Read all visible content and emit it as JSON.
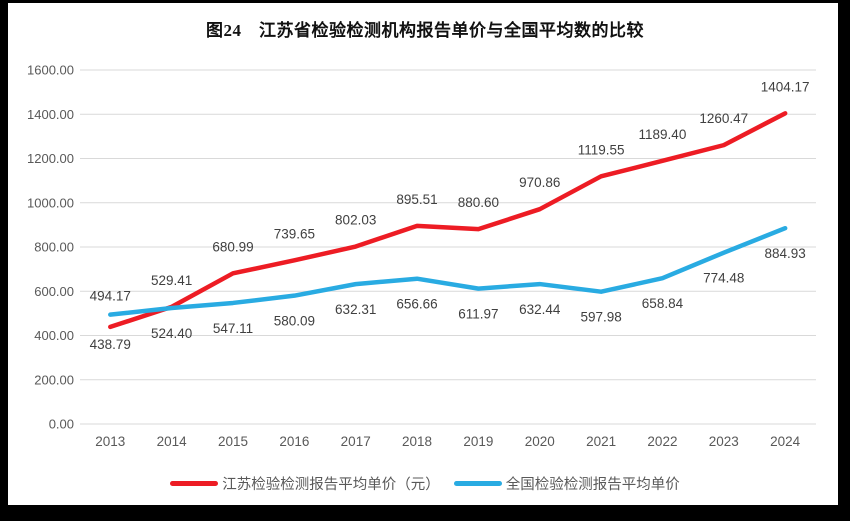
{
  "figure": {
    "title": "图24　江苏省检验检测机构报告单价与全国平均数的比较"
  },
  "chart_data": {
    "type": "line",
    "title": "图24　江苏省检验检测机构报告单价与全国平均数的比较",
    "categories": [
      "2013",
      "2014",
      "2015",
      "2016",
      "2017",
      "2018",
      "2019",
      "2020",
      "2021",
      "2022",
      "2023",
      "2024"
    ],
    "series": [
      {
        "name": "江苏检验检测报告平均单价（元）",
        "color": "#ed1c24",
        "values": [
          438.79,
          529.41,
          680.99,
          739.65,
          802.03,
          895.51,
          880.6,
          970.86,
          1119.55,
          1189.4,
          1260.47,
          1404.17
        ],
        "label_side": "above",
        "label_side_exceptions": {
          "0": "below"
        }
      },
      {
        "name": "全国检验检测报告平均单价",
        "color": "#29abe2",
        "values": [
          494.17,
          524.4,
          547.11,
          580.09,
          632.31,
          656.66,
          611.97,
          632.44,
          597.98,
          658.84,
          774.48,
          884.93
        ],
        "label_side": "below",
        "label_side_exceptions": {
          "0": "above"
        }
      }
    ],
    "xlabel": "",
    "ylabel": "",
    "ylim": [
      0,
      1600
    ],
    "ytick_step": 200,
    "ytick_decimals": 2,
    "value_decimals": 2,
    "grid": true,
    "legend_position": "bottom",
    "colors": {
      "grid": "#d9d9d9",
      "axis_text": "#595959",
      "label_text": "#404040",
      "frame": "#000000",
      "background": "#ffffff"
    }
  }
}
